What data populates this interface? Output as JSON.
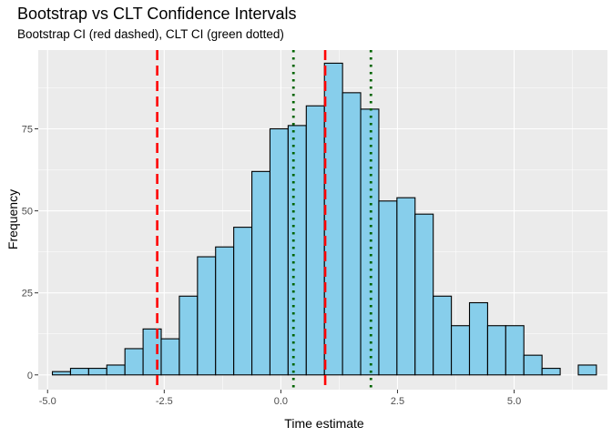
{
  "chart_data": {
    "type": "bar",
    "title": "Bootstrap vs CLT Confidence Intervals",
    "subtitle": "Bootstrap CI (red dashed), CLT CI (green dotted)",
    "xlabel": "Time estimate",
    "ylabel": "Frequency",
    "xlim": [
      -5.2,
      7.0
    ],
    "ylim": [
      -4.5,
      99
    ],
    "x_ticks": [
      -5.0,
      -2.5,
      0.0,
      2.5,
      5.0
    ],
    "x_tick_labels": [
      "-5.0",
      "-2.5",
      "0.0",
      "2.5",
      "5.0"
    ],
    "y_ticks": [
      0,
      25,
      50,
      75
    ],
    "y_tick_labels": [
      "0",
      "25",
      "50",
      "75"
    ],
    "grid": true,
    "bin_width": 0.3887,
    "bin_starts": [
      -4.897,
      -4.508,
      -4.119,
      -3.731,
      -3.342,
      -2.953,
      -2.565,
      -2.176,
      -1.787,
      -1.399,
      -1.01,
      -0.621,
      -0.233,
      0.156,
      0.545,
      0.934,
      1.322,
      1.711,
      2.1,
      2.488,
      2.877,
      3.266,
      3.654,
      4.043,
      4.432,
      4.82,
      5.209,
      5.598,
      5.986,
      6.375
    ],
    "values": [
      1,
      2,
      2,
      3,
      8,
      14,
      11,
      24,
      36,
      39,
      45,
      62,
      75,
      76,
      82,
      95,
      86,
      81,
      53,
      54,
      49,
      24,
      15,
      22,
      15,
      15,
      6,
      2,
      0,
      3
    ],
    "bar_fill": "#87ceeb",
    "bar_stroke": "#000000",
    "panel_background": "#ebebeb",
    "grid_color": "#ffffff",
    "reference_lines": [
      {
        "x": -2.65,
        "style": "dashed",
        "color": "#ff0000"
      },
      {
        "x": 0.95,
        "style": "dashed",
        "color": "#ff0000"
      },
      {
        "x": 0.27,
        "style": "dotted",
        "color": "#006400"
      },
      {
        "x": 1.93,
        "style": "dotted",
        "color": "#006400"
      }
    ]
  }
}
